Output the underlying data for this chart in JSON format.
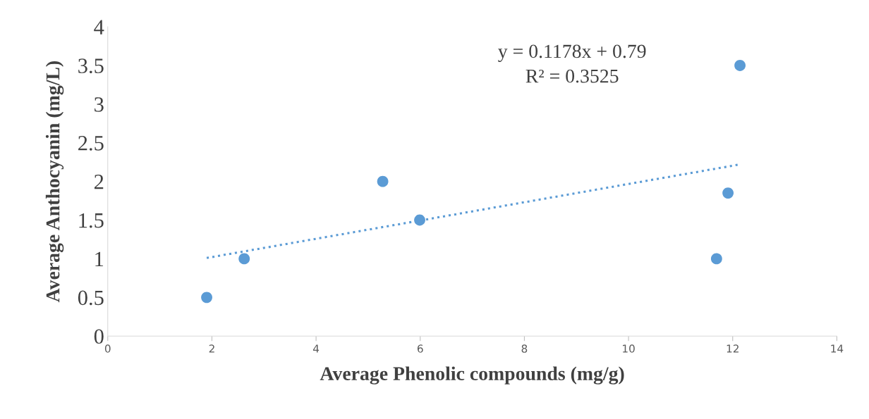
{
  "chart_data": {
    "type": "scatter",
    "xlabel": "Average Phenolic compounds (mg/g)",
    "ylabel": "Average Anthocyanin (mg/L)",
    "x": [
      1.9,
      2.62,
      5.28,
      5.99,
      11.69,
      11.91,
      12.14
    ],
    "series": [
      {
        "color": "#5b9bd5",
        "marker": "circle",
        "values": [
          0.5,
          1.0,
          2.0,
          1.5,
          1.0,
          1.85,
          3.5
        ]
      },
      {
        "type": "line",
        "color": "#5b9bd5",
        "line_style": "dotted",
        "marker": "none",
        "x": [
          1.9,
          12.14
        ],
        "values": [
          1.01,
          2.22
        ]
      }
    ],
    "annotations": [
      "y = 0.1178x + 0.79",
      "R² = 0.3525"
    ],
    "xlim": [
      0,
      14
    ],
    "xticks": [
      0,
      2,
      4,
      6,
      8,
      10,
      12,
      14
    ],
    "ylim": [
      0,
      4
    ],
    "yticks": [
      0,
      0.5,
      1,
      1.5,
      2,
      2.5,
      3,
      3.5,
      4
    ],
    "grid": false,
    "legend": false
  }
}
